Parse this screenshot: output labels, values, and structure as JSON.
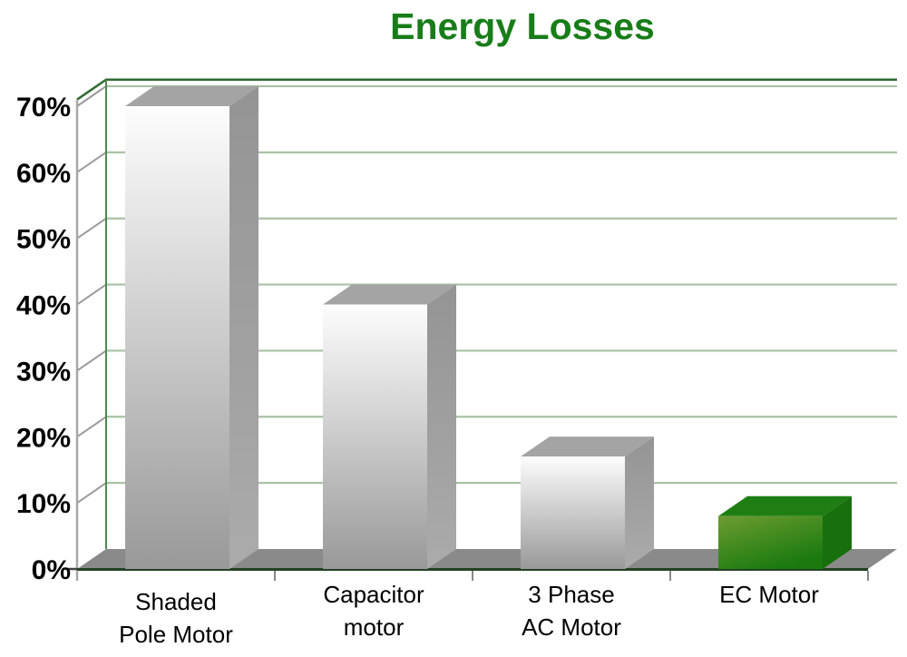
{
  "chart_data": {
    "type": "bar",
    "title": "Energy Losses",
    "categories": [
      [
        "Shaded",
        "Pole Motor"
      ],
      [
        "Capacitor",
        "motor"
      ],
      [
        "3 Phase",
        "AC Motor"
      ],
      [
        "EC Motor"
      ]
    ],
    "values": [
      70,
      40,
      17,
      8
    ],
    "value_unit": "%",
    "yticks": [
      0,
      10,
      20,
      30,
      40,
      50,
      60,
      70
    ],
    "ytick_suffix": "%",
    "ylim": [
      0,
      70
    ],
    "grid": "horizontal",
    "legend": "none",
    "style": "3d-bars",
    "bar_styles": [
      "silver",
      "silver",
      "silver",
      "green"
    ]
  },
  "colors": {
    "title_green": "#187d18",
    "grid_light_green": "#a9c2a4",
    "wall_edge_green": "#2f6930",
    "wall_left_green": "#4c8a4c",
    "baseline_green": "#234223",
    "axis_line_gray": "#a8a8a8",
    "diag_gray": "#9a9a9a",
    "floor_gray": "#8a8a8a",
    "tick_gray": "#888888",
    "tick_dark": "#444444",
    "label_black": "#000000",
    "silver_front_top": "#fdfdfd",
    "silver_front_bottom": "#999999",
    "silver_top": "#a4a4a4",
    "silver_side_top": "#949494",
    "silver_side_bottom": "#ababab",
    "green_front_light": "#6d9c31",
    "green_front_dark": "#1a7a0f",
    "green_top": "#1f7e13",
    "green_side": "#17700c"
  }
}
